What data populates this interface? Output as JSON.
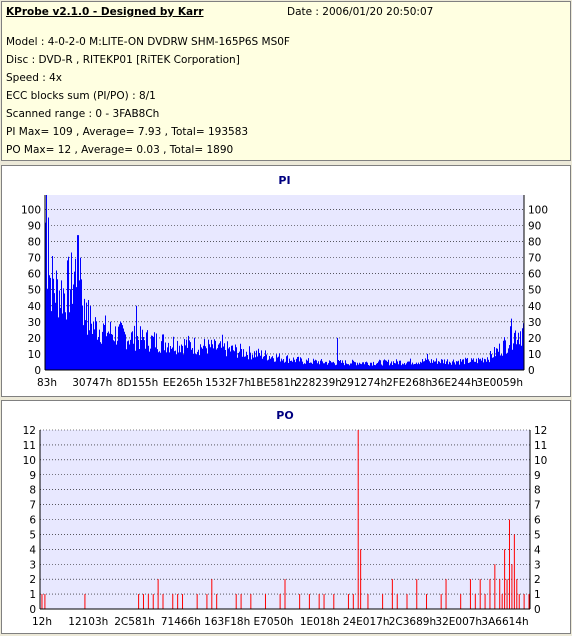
{
  "info": {
    "app_title": "KProbe v2.1.0 - Designed by Karr",
    "date": "Date : 2006/01/20 20:50:07",
    "model": "Model : 4-0-2-0 M:LITE-ON DVDRW SHM-165P6S MS0F",
    "disc": "Disc : DVD-R , RITEKP01 [RiTEK Corporation]",
    "speed": "Speed : 4x",
    "ecc": "ECC blocks sum (PI/PO) : 8/1",
    "range": "Scanned range : 0 - 3FAB8Ch",
    "pi_stats": "PI Max= 109 , Average= 7.93 , Total= 193583",
    "po_stats": "PO Max= 12 , Average= 0.03 , Total= 1890"
  },
  "colors": {
    "pi": "#0000ff",
    "po": "#ff0000",
    "plot_bg": "#e8e8ff",
    "grid": "#000000"
  },
  "chart_data": [
    {
      "type": "bar",
      "title": "PI",
      "ylim": [
        0,
        109
      ],
      "yticks": [
        0,
        10,
        20,
        30,
        40,
        50,
        60,
        70,
        80,
        90,
        100
      ],
      "grid": true,
      "xticks": [
        "83h",
        "30747h",
        "8D155h",
        "EE265h",
        "1532F7h",
        "1BE581h",
        "228239h",
        "291274h",
        "2FE268h",
        "36E244h",
        "3E0059h"
      ],
      "profile": [
        [
          0,
          100
        ],
        [
          0.4,
          80
        ],
        [
          1,
          62
        ],
        [
          2,
          55
        ],
        [
          4,
          52
        ],
        [
          5.5,
          58
        ],
        [
          6.5,
          68
        ],
        [
          7.5,
          60
        ],
        [
          8,
          40
        ],
        [
          10,
          30
        ],
        [
          14,
          25
        ],
        [
          18,
          22
        ],
        [
          24,
          19
        ],
        [
          30,
          17
        ],
        [
          38,
          14
        ],
        [
          46,
          10
        ],
        [
          50,
          8
        ],
        [
          54,
          6
        ],
        [
          60,
          5
        ],
        [
          70,
          5
        ],
        [
          80,
          6
        ],
        [
          86,
          6
        ],
        [
          90,
          6
        ],
        [
          93,
          9
        ],
        [
          95,
          14
        ],
        [
          97,
          20
        ],
        [
          98.5,
          25
        ],
        [
          100,
          27
        ]
      ],
      "peaks": [
        [
          0.2,
          109
        ],
        [
          0.6,
          95
        ],
        [
          6.8,
          84
        ],
        [
          7.3,
          70
        ],
        [
          8.5,
          42
        ],
        [
          19,
          40
        ],
        [
          37,
          22
        ],
        [
          61,
          20
        ],
        [
          80,
          10
        ],
        [
          97.5,
          32
        ]
      ]
    },
    {
      "type": "bar",
      "title": "PO",
      "ylim": [
        0,
        12
      ],
      "yticks": [
        0,
        1,
        2,
        3,
        4,
        5,
        6,
        7,
        8,
        9,
        10,
        11,
        12
      ],
      "grid": true,
      "xticks": [
        "12h",
        "12103h",
        "2C581h",
        "71466h",
        "163F18h",
        "E7050h",
        "1E018h",
        "24E017h",
        "2C3689h",
        "32E007h",
        "3A6614h"
      ],
      "spikes": [
        [
          0.2,
          1
        ],
        [
          0.8,
          1
        ],
        [
          9,
          1
        ],
        [
          20,
          1
        ],
        [
          21,
          1
        ],
        [
          22,
          1
        ],
        [
          23,
          1
        ],
        [
          24,
          2
        ],
        [
          25,
          1
        ],
        [
          27,
          1
        ],
        [
          28,
          1
        ],
        [
          29,
          1
        ],
        [
          32,
          1
        ],
        [
          34,
          1
        ],
        [
          35,
          2
        ],
        [
          36,
          1
        ],
        [
          40,
          1
        ],
        [
          41,
          1
        ],
        [
          43,
          1
        ],
        [
          46,
          1
        ],
        [
          49,
          1
        ],
        [
          50,
          2
        ],
        [
          53,
          1
        ],
        [
          55,
          1
        ],
        [
          57,
          1
        ],
        [
          58,
          1
        ],
        [
          60,
          1
        ],
        [
          63,
          1
        ],
        [
          64,
          1
        ],
        [
          65,
          12
        ],
        [
          65.5,
          4
        ],
        [
          67,
          1
        ],
        [
          70,
          1
        ],
        [
          72,
          2
        ],
        [
          73,
          1
        ],
        [
          75,
          1
        ],
        [
          77,
          2
        ],
        [
          79,
          1
        ],
        [
          82,
          1
        ],
        [
          83,
          2
        ],
        [
          86,
          1
        ],
        [
          88,
          2
        ],
        [
          89,
          1
        ],
        [
          90,
          2
        ],
        [
          91,
          1
        ],
        [
          92,
          2
        ],
        [
          93,
          3
        ],
        [
          94,
          2
        ],
        [
          94.5,
          1
        ],
        [
          95,
          4
        ],
        [
          95.5,
          2
        ],
        [
          96,
          6
        ],
        [
          96.5,
          3
        ],
        [
          97,
          5
        ],
        [
          97.5,
          2
        ],
        [
          98,
          1
        ],
        [
          99,
          1
        ],
        [
          100,
          1
        ]
      ]
    }
  ]
}
